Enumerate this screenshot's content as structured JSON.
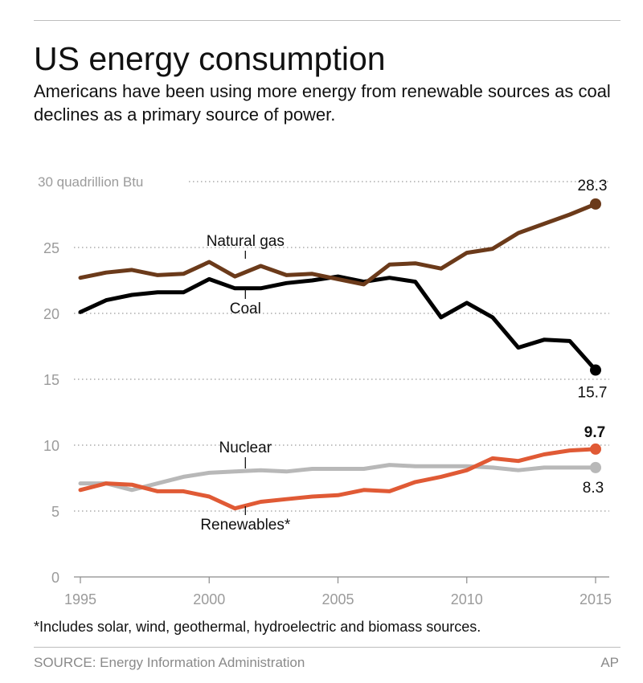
{
  "title": "US energy consumption",
  "subtitle": "Americans have been using more energy from renewable sources as coal declines as a primary source of power.",
  "footnote": "*Includes solar, wind, geothermal, hydroelectric and biomass sources.",
  "source": "SOURCE: Energy Information Administration",
  "credit": "AP",
  "chart_data": {
    "type": "line",
    "title": "US energy consumption",
    "ylabel": "quadrillion Btu",
    "y_top_tick_label": "30 quadrillion Btu",
    "x": [
      1995,
      1996,
      1997,
      1998,
      1999,
      2000,
      2001,
      2002,
      2003,
      2004,
      2005,
      2006,
      2007,
      2008,
      2009,
      2010,
      2011,
      2012,
      2013,
      2014,
      2015
    ],
    "xlim": [
      1995,
      2015
    ],
    "ylim": [
      0,
      30
    ],
    "x_ticks": [
      1995,
      2000,
      2005,
      2010,
      2015
    ],
    "y_ticks": [
      0,
      5,
      10,
      15,
      20,
      25,
      30
    ],
    "grid": "dotted horizontal",
    "series": [
      {
        "name": "Natural gas",
        "color": "#6b3a1a",
        "values": [
          22.7,
          23.1,
          23.3,
          22.9,
          23.0,
          23.9,
          22.8,
          23.6,
          22.9,
          23.0,
          22.6,
          22.2,
          23.7,
          23.8,
          23.4,
          24.6,
          24.9,
          26.1,
          26.8,
          27.5,
          28.3
        ],
        "end_label": "28.3"
      },
      {
        "name": "Coal",
        "color": "#000000",
        "values": [
          20.1,
          21.0,
          21.4,
          21.6,
          21.6,
          22.6,
          21.9,
          21.9,
          22.3,
          22.5,
          22.8,
          22.4,
          22.7,
          22.4,
          19.7,
          20.8,
          19.7,
          17.4,
          18.0,
          17.9,
          15.7
        ],
        "end_label": "15.7"
      },
      {
        "name": "Nuclear",
        "color": "#b8b8b8",
        "values": [
          7.1,
          7.1,
          6.6,
          7.1,
          7.6,
          7.9,
          8.0,
          8.1,
          8.0,
          8.2,
          8.2,
          8.2,
          8.5,
          8.4,
          8.4,
          8.4,
          8.3,
          8.1,
          8.3,
          8.3,
          8.3
        ],
        "end_label": "8.3"
      },
      {
        "name": "Renewables*",
        "color": "#e05a35",
        "values": [
          6.6,
          7.1,
          7.0,
          6.5,
          6.5,
          6.1,
          5.2,
          5.7,
          5.9,
          6.1,
          6.2,
          6.6,
          6.5,
          7.2,
          7.6,
          8.1,
          9.0,
          8.8,
          9.3,
          9.6,
          9.7
        ],
        "end_label": "9.7"
      }
    ],
    "annotations": [
      {
        "text": "Natural gas",
        "series": "Natural gas",
        "year": 2001,
        "side": "above"
      },
      {
        "text": "Coal",
        "series": "Coal",
        "year": 2001,
        "side": "below"
      },
      {
        "text": "Nuclear",
        "series": "Nuclear",
        "year": 2001,
        "side": "above"
      },
      {
        "text": "Renewables*",
        "series": "Renewables*",
        "year": 2001,
        "side": "below"
      }
    ]
  }
}
